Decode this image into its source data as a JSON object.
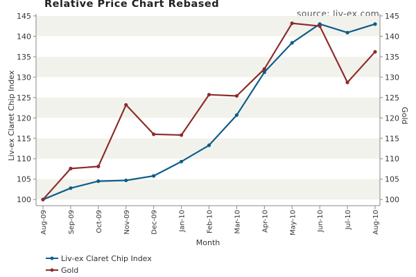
{
  "colors": {
    "background": "#ffffff",
    "band": "#f2f2ec",
    "axis": "#888888",
    "series_claret": "#0e5d8b",
    "series_gold": "#8e2b2b"
  },
  "chart_data": {
    "type": "line",
    "title": "Relative Price Chart Rebased",
    "source": "source: liv-ex.com",
    "xlabel": "Month",
    "ylabel_left": "Liv-ex Claret Chip Index",
    "ylabel_right": "Gold",
    "categories": [
      "Aug-09",
      "Sep-09",
      "Oct-09",
      "Nov-09",
      "Dec-09",
      "Jan-10",
      "Feb-10",
      "Mar-10",
      "Apr-10",
      "May-10",
      "Jun-10",
      "Jul-10",
      "Aug-10"
    ],
    "y_ticks": [
      100,
      105,
      110,
      115,
      120,
      125,
      130,
      135,
      140,
      145
    ],
    "ylim": [
      98.5,
      145.5
    ],
    "grid": "alternating horizontal bands",
    "legend_position": "bottom-left",
    "series": [
      {
        "name": "Liv-ex Claret Chip Index",
        "color": "#0e5d8b",
        "values": [
          100,
          102.8,
          104.5,
          104.7,
          105.8,
          109.3,
          113.3,
          120.7,
          131.2,
          138.4,
          143.0,
          140.9,
          143.0
        ]
      },
      {
        "name": "Gold",
        "color": "#8e2b2b",
        "values": [
          100,
          107.6,
          108.1,
          123.2,
          116.0,
          115.8,
          125.7,
          125.4,
          132.0,
          143.2,
          142.5,
          128.7,
          136.2
        ]
      }
    ]
  }
}
